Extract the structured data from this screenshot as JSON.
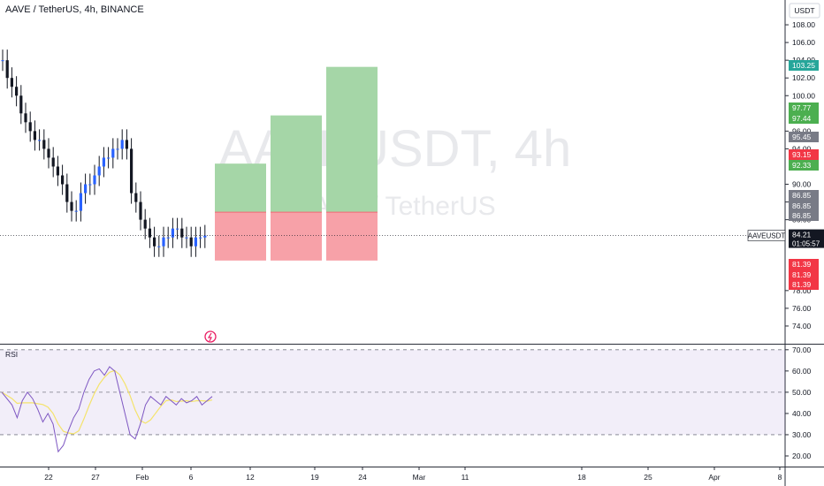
{
  "header": {
    "title": "AAVE / TetherUS, 4h, BINANCE"
  },
  "watermark": {
    "symbol": "AAVEUSDT, 4h",
    "name": "AAVE / TetherUS"
  },
  "price_axis": {
    "currency": "USDT",
    "ticks": [
      "108.00",
      "106.00",
      "104.00",
      "102.00",
      "100.00",
      "96.00",
      "94.00",
      "90.00",
      "88.00",
      "86.00",
      "78.00",
      "76.00",
      "74.00"
    ]
  },
  "price_labels": [
    {
      "text": "103.25",
      "color": "#26a69a"
    },
    {
      "text": "97.77",
      "color": "#4caf50"
    },
    {
      "text": "97.44",
      "color": "#4caf50"
    },
    {
      "text": "95.45",
      "color": "#787b86"
    },
    {
      "text": "93.15",
      "color": "#f23645"
    },
    {
      "text": "92.33",
      "color": "#4caf50"
    },
    {
      "text": "86.85",
      "color": "#787b86"
    },
    {
      "text": "86.85",
      "color": "#787b86"
    },
    {
      "text": "86.85",
      "color": "#787b86"
    },
    {
      "text": "81.39",
      "color": "#f23645"
    },
    {
      "text": "81.39",
      "color": "#f23645"
    },
    {
      "text": "81.39",
      "color": "#f23645"
    }
  ],
  "current": {
    "symbol": "AAVEUSDT",
    "price": "84.21",
    "countdown": "01:05:57"
  },
  "rsi": {
    "label": "RSI",
    "ticks": [
      "70.00",
      "60.00",
      "50.00",
      "40.00",
      "30.00",
      "20.00"
    ]
  },
  "time_axis": [
    "22",
    "27",
    "Feb",
    "6",
    "12",
    "19",
    "24",
    "Mar",
    "11",
    "18",
    "25",
    "Apr",
    "8"
  ],
  "colors": {
    "up": "#26a69a",
    "down": "#ef5350",
    "profit": "#a5d6a7",
    "loss": "#f7a1a8",
    "rsi_line": "#7e57c2",
    "rsi_ma": "#f4e36b"
  },
  "chart_data": {
    "type": "line",
    "title": "AAVE / TetherUS, 4h, BINANCE",
    "xlabel": "",
    "ylabel": "",
    "x_ticks": [
      "22",
      "27",
      "Feb",
      "6",
      "12",
      "19",
      "24",
      "Mar",
      "11",
      "18",
      "25",
      "Apr",
      "8"
    ],
    "ylim": [
      72,
      110
    ],
    "series": [
      {
        "values": [
          104,
          102,
          101,
          100,
          98,
          97,
          96,
          95,
          95,
          94,
          93,
          92,
          91,
          90,
          88,
          87,
          87,
          89,
          90,
          90,
          91,
          92,
          93,
          93,
          94,
          94,
          95,
          94,
          89,
          88,
          86,
          85,
          84,
          83,
          83,
          84,
          84,
          85,
          85,
          84,
          84,
          83,
          84,
          84,
          84.21
        ]
      }
    ],
    "positions": [
      {
        "entry": 86.85,
        "stop": 81.39,
        "target": 92.33
      },
      {
        "entry": 86.85,
        "stop": 81.39,
        "target": 97.77
      },
      {
        "entry": 86.85,
        "stop": 81.39,
        "target": 103.25
      }
    ],
    "rsi": {
      "ylim": [
        15,
        72
      ],
      "values": [
        50,
        47,
        44,
        38,
        46,
        50,
        47,
        42,
        36,
        40,
        35,
        22,
        25,
        32,
        38,
        42,
        50,
        56,
        60,
        61,
        58,
        62,
        60,
        50,
        40,
        30,
        28,
        35,
        44,
        48,
        46,
        44,
        48,
        46,
        44,
        47,
        45,
        46,
        48,
        44,
        46,
        48
      ]
    }
  }
}
